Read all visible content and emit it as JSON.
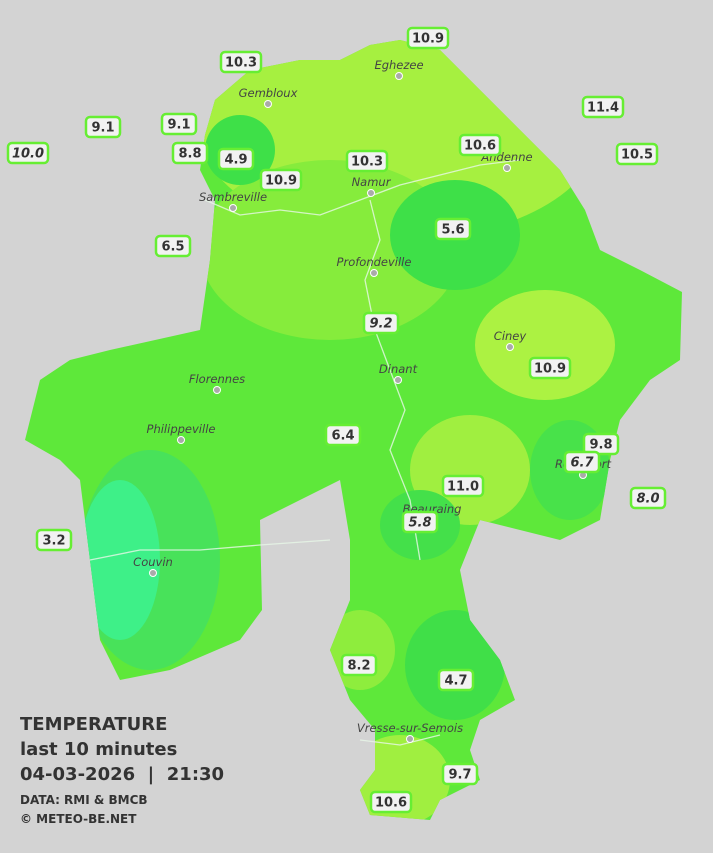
{
  "title": {
    "heading": "TEMPERATURE",
    "subtitle": "last 10 minutes",
    "datetime": "04-03-2026  |  21:30",
    "source": "DATA: RMI & BMCB",
    "copyright": "© METEO-BE.NET"
  },
  "stations": [
    {
      "value": "10.9"
    },
    {
      "value": "10.3"
    },
    {
      "value": "11.4"
    },
    {
      "value": "9.1"
    },
    {
      "value": "9.1"
    },
    {
      "value": "10.0",
      "italic": true
    },
    {
      "value": "8.8"
    },
    {
      "value": "4.9"
    },
    {
      "value": "10.3"
    },
    {
      "value": "10.6"
    },
    {
      "value": "10.5"
    },
    {
      "value": "10.9"
    },
    {
      "value": "5.6"
    },
    {
      "value": "6.5"
    },
    {
      "value": "9.2",
      "italic": true
    },
    {
      "value": "10.9"
    },
    {
      "value": "6.4"
    },
    {
      "value": "9.8"
    },
    {
      "value": "6.7",
      "italic": true
    },
    {
      "value": "11.0"
    },
    {
      "value": "8.0",
      "italic": true
    },
    {
      "value": "5.8",
      "italic": true
    },
    {
      "value": "3.2"
    },
    {
      "value": "8.2"
    },
    {
      "value": "4.7"
    },
    {
      "value": "9.7"
    },
    {
      "value": "10.6"
    }
  ],
  "cities": [
    "Eghezee",
    "Gembloux",
    "Andenne",
    "Namur",
    "Sambreville",
    "Profondeville",
    "Ciney",
    "Dinant",
    "Florennes",
    "Philippeville",
    "Rochefort",
    "Beauraing",
    "Couvin",
    "Vresse-sur-Semois"
  ]
}
